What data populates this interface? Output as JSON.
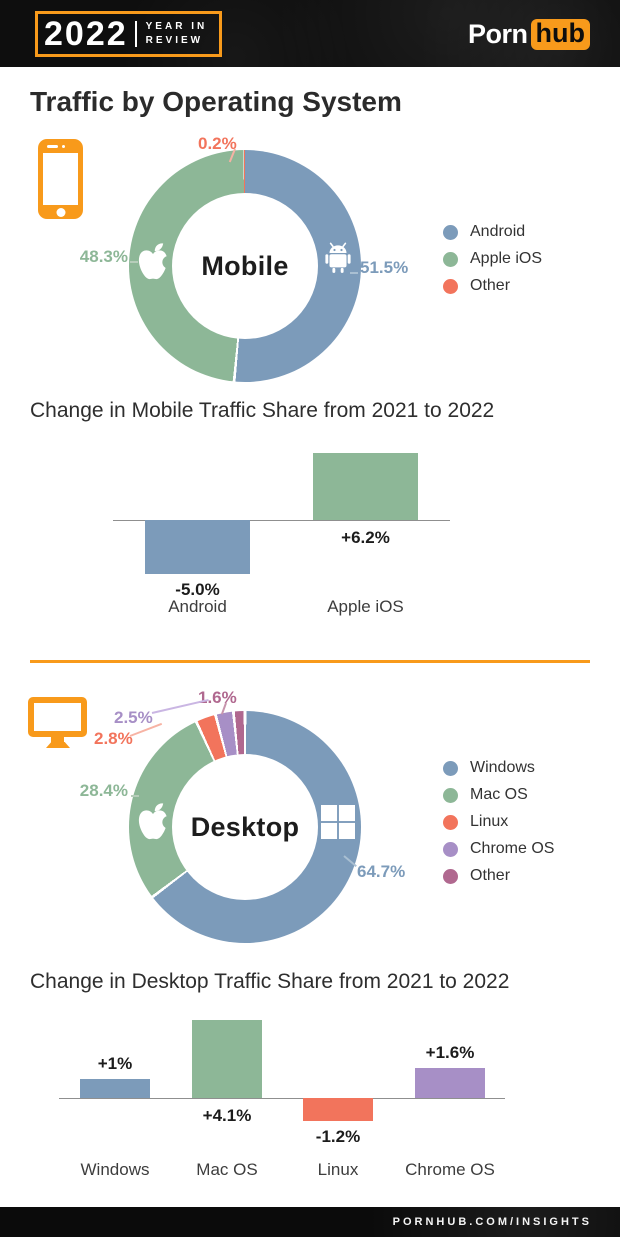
{
  "header": {
    "year": "2022",
    "tagline_line1": "YEAR IN",
    "tagline_line2": "REVIEW",
    "brand_left": "Porn",
    "brand_right": "hub"
  },
  "page_title": "Traffic by Operating System",
  "footer": {
    "text": "PORNHUB.COM/INSIGHTS"
  },
  "colors": {
    "orange": "#f89a1b",
    "blue": "#7c9bba",
    "green": "#8db797",
    "salmon": "#f2745c",
    "purple": "#a78fc6",
    "mauve": "#b0688f",
    "header_bg": "#0e0e0e",
    "text_dark": "#2b2b2b"
  },
  "chart_data": [
    {
      "type": "pie",
      "subtype": "donut",
      "center_label": "Mobile",
      "legend_position": "right",
      "series": [
        {
          "name": "Android",
          "value": 51.5,
          "display": "51.5%",
          "color": "#7c9bba",
          "icon": "android-icon"
        },
        {
          "name": "Apple iOS",
          "value": 48.3,
          "display": "48.3%",
          "color": "#8db797",
          "icon": "apple-icon"
        },
        {
          "name": "Other",
          "value": 0.2,
          "display": "0.2%",
          "color": "#f2745c"
        }
      ]
    },
    {
      "type": "bar",
      "title": "Change in Mobile Traffic Share from 2021 to 2022",
      "ylabel": "",
      "xlabel": "",
      "bars": [
        {
          "category": "Android",
          "value": -5.0,
          "label": "-5.0%",
          "color": "#7c9bba",
          "label_position": "below-bar"
        },
        {
          "category": "Apple iOS",
          "value": 6.2,
          "label": "+6.2%",
          "color": "#8db797",
          "label_position": "below-baseline"
        }
      ]
    },
    {
      "type": "pie",
      "subtype": "donut",
      "center_label": "Desktop",
      "legend_position": "right",
      "series": [
        {
          "name": "Windows",
          "value": 64.7,
          "display": "64.7%",
          "color": "#7c9bba",
          "icon": "windows-icon"
        },
        {
          "name": "Mac OS",
          "value": 28.4,
          "display": "28.4%",
          "color": "#8db797",
          "icon": "apple-icon"
        },
        {
          "name": "Linux",
          "value": 2.8,
          "display": "2.8%",
          "color": "#f2745c"
        },
        {
          "name": "Chrome OS",
          "value": 2.5,
          "display": "2.5%",
          "color": "#a78fc6"
        },
        {
          "name": "Other",
          "value": 1.6,
          "display": "1.6%",
          "color": "#b0688f"
        }
      ]
    },
    {
      "type": "bar",
      "title": "Change in Desktop Traffic Share from 2021 to 2022",
      "ylabel": "",
      "xlabel": "",
      "bars": [
        {
          "category": "Windows",
          "value": 1.0,
          "label": "+1%",
          "color": "#7c9bba",
          "label_position": "above-bar"
        },
        {
          "category": "Mac OS",
          "value": 4.1,
          "label": "+4.1%",
          "color": "#8db797",
          "label_position": "below-baseline"
        },
        {
          "category": "Linux",
          "value": -1.2,
          "label": "-1.2%",
          "color": "#f2745c",
          "label_position": "below-bar"
        },
        {
          "category": "Chrome OS",
          "value": 1.6,
          "label": "+1.6%",
          "color": "#a78fc6",
          "label_position": "above-bar"
        }
      ]
    }
  ]
}
